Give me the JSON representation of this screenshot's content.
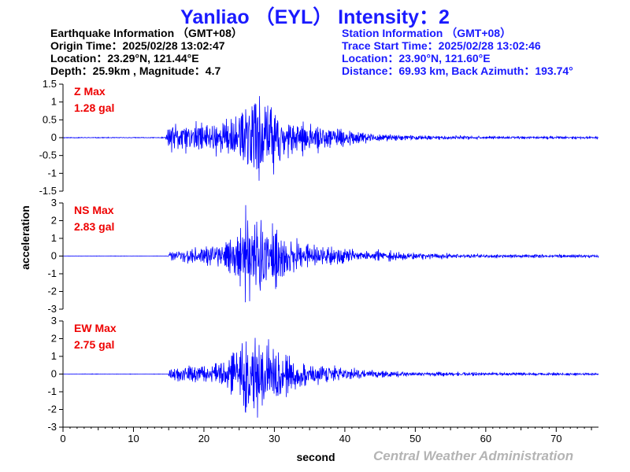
{
  "header": {
    "title": "Yanliao （EYL） Intensity：2",
    "earthquake": {
      "heading": "Earthquake Information （GMT+08）",
      "origin_time": "Origin Time：2025/02/28 13:02:47",
      "location": "Location：23.29°N, 121.44°E",
      "depth_magnitude": "Depth：25.9km , Magnitude：4.7"
    },
    "station": {
      "heading": "Station Information （GMT+08）",
      "trace_start": "Trace Start Time：2025/02/28 13:02:46",
      "location": "Location：23.90°N, 121.60°E",
      "distance": "Distance：69.93 km, Back Azimuth：193.74°"
    }
  },
  "footer": "Central Weather Administration",
  "colors": {
    "title": "#1a1aff",
    "trace": "#0000ff",
    "max_label": "#ee0000",
    "axis": "#000000",
    "footer": "#b4b4b4"
  },
  "chart_data": {
    "type": "line",
    "xlabel": "second",
    "ylabel": "acceleration",
    "xlim": [
      0,
      76
    ],
    "x_ticks": [
      0,
      10,
      20,
      30,
      40,
      50,
      60,
      70
    ],
    "panels": [
      {
        "name": "Z",
        "max_label": "Z Max",
        "max_value_label": "1.28 gal",
        "max_value": 1.28,
        "ylim": [
          -1.5,
          1.5
        ],
        "y_ticks": [
          1.5,
          1,
          0.5,
          0,
          -0.5,
          -1,
          -1.5
        ],
        "envelope": [
          [
            0,
            0.01
          ],
          [
            14.5,
            0.01
          ],
          [
            15,
            0.35
          ],
          [
            17,
            0.4
          ],
          [
            20,
            0.38
          ],
          [
            23,
            0.48
          ],
          [
            25,
            0.65
          ],
          [
            27,
            1.2
          ],
          [
            28,
            1.25
          ],
          [
            29,
            1.0
          ],
          [
            30,
            0.85
          ],
          [
            31,
            0.6
          ],
          [
            33,
            0.42
          ],
          [
            36,
            0.32
          ],
          [
            40,
            0.22
          ],
          [
            45,
            0.1
          ],
          [
            50,
            0.06
          ],
          [
            60,
            0.04
          ],
          [
            76,
            0.03
          ]
        ],
        "seed": 11
      },
      {
        "name": "NS",
        "max_label": "NS Max",
        "max_value_label": "2.83 gal",
        "max_value": 2.83,
        "ylim": [
          -3,
          3
        ],
        "y_ticks": [
          3,
          2,
          1,
          0,
          -1,
          -2,
          -3
        ],
        "envelope": [
          [
            0,
            0.01
          ],
          [
            14.9,
            0.01
          ],
          [
            15.3,
            0.35
          ],
          [
            20,
            0.45
          ],
          [
            23,
            0.7
          ],
          [
            25,
            1.3
          ],
          [
            26.5,
            2.8
          ],
          [
            27.5,
            2.3
          ],
          [
            29,
            1.9
          ],
          [
            30,
            1.4
          ],
          [
            32,
            0.9
          ],
          [
            35,
            0.6
          ],
          [
            40,
            0.42
          ],
          [
            45,
            0.3
          ],
          [
            50,
            0.18
          ],
          [
            60,
            0.1
          ],
          [
            76,
            0.08
          ]
        ],
        "seed": 23
      },
      {
        "name": "EW",
        "max_label": "EW Max",
        "max_value_label": "2.75 gal",
        "max_value": 2.75,
        "ylim": [
          -3,
          3
        ],
        "y_ticks": [
          3,
          2,
          1,
          0,
          -1,
          -2,
          -3
        ],
        "envelope": [
          [
            0,
            0.01
          ],
          [
            14.9,
            0.01
          ],
          [
            15.3,
            0.35
          ],
          [
            20,
            0.45
          ],
          [
            23,
            0.7
          ],
          [
            25,
            1.3
          ],
          [
            26.2,
            2.7
          ],
          [
            27.5,
            2.2
          ],
          [
            29,
            1.8
          ],
          [
            30,
            1.4
          ],
          [
            32,
            1.0
          ],
          [
            35,
            0.55
          ],
          [
            40,
            0.35
          ],
          [
            45,
            0.2
          ],
          [
            50,
            0.12
          ],
          [
            60,
            0.08
          ],
          [
            76,
            0.06
          ]
        ],
        "seed": 37
      }
    ]
  }
}
